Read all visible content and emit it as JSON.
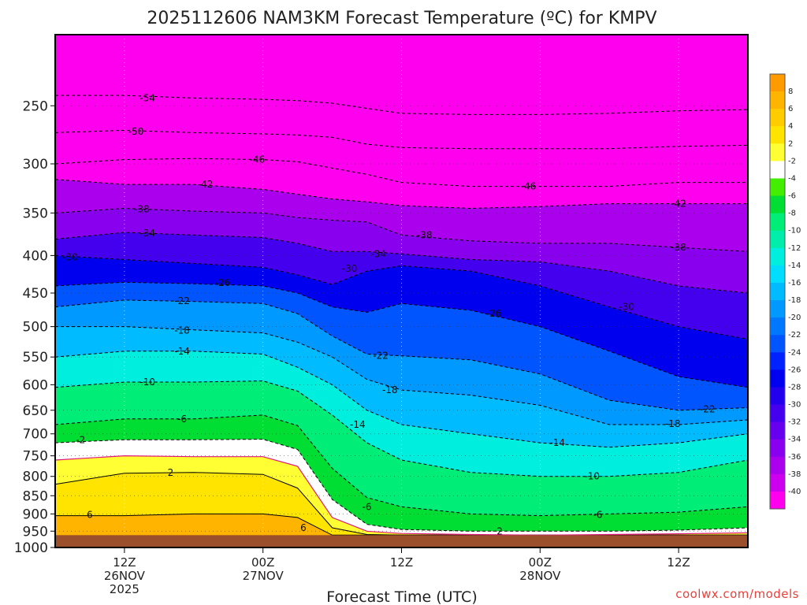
{
  "chart_data": {
    "type": "heatmap",
    "title": "2025112606 NAM3KM Forecast Temperature (ºC) for KMPV",
    "xlabel": "Forecast Time (UTC)",
    "ylabel": "",
    "y_scale": "log-pressure",
    "ylim": [
      1000,
      200
    ],
    "y_ticks": [
      250,
      300,
      350,
      400,
      450,
      500,
      550,
      600,
      650,
      700,
      750,
      800,
      850,
      900,
      950,
      1000
    ],
    "x_range_hours": [
      0,
      60
    ],
    "x_ticks": [
      {
        "hour": 6,
        "label": "12Z",
        "date": "26NOV",
        "year": "2025"
      },
      {
        "hour": 18,
        "label": "00Z",
        "date": "27NOV",
        "year": ""
      },
      {
        "hour": 30,
        "label": "12Z",
        "date": "",
        "year": ""
      },
      {
        "hour": 42,
        "label": "00Z",
        "date": "28NOV",
        "year": ""
      },
      {
        "hour": 54,
        "label": "12Z",
        "date": "",
        "year": ""
      }
    ],
    "ground_pressure": 962,
    "colorbar": {
      "ticks": [
        8,
        6,
        4,
        2,
        -2,
        -4,
        -6,
        -8,
        -10,
        -12,
        -14,
        -16,
        -18,
        -20,
        -22,
        -24,
        -26,
        -28,
        -30,
        -32,
        -34,
        -36,
        -38,
        -40
      ],
      "colors": [
        "#ff9a00",
        "#ffb400",
        "#ffcc00",
        "#ffe400",
        "#ffff33",
        "#ffffff",
        "#44ee00",
        "#00dd33",
        "#00ee77",
        "#00eeaa",
        "#00eedd",
        "#00ddff",
        "#00bbff",
        "#0099ff",
        "#0077ff",
        "#0055ff",
        "#0022ff",
        "#0000ee",
        "#2200ee",
        "#4400ee",
        "#6600ee",
        "#8800ee",
        "#aa00ee",
        "#cc00ee",
        "#ff00ee"
      ]
    },
    "columns_hours": [
      0,
      6,
      12,
      18,
      21,
      24,
      27,
      30,
      36,
      42,
      48,
      54,
      60
    ],
    "isotherm_profiles": [
      {
        "temp": 6,
        "p": [
          905,
          905,
          900,
          900,
          910,
          962,
          962,
          962,
          962,
          962,
          962,
          962,
          962
        ]
      },
      {
        "temp": 2,
        "p": [
          820,
          792,
          790,
          795,
          830,
          940,
          960,
          962,
          962,
          962,
          962,
          962,
          962
        ]
      },
      {
        "temp": 0,
        "p": [
          760,
          750,
          752,
          752,
          775,
          910,
          950,
          957,
          960,
          962,
          960,
          958,
          955
        ]
      },
      {
        "temp": -2,
        "p": [
          720,
          713,
          713,
          712,
          735,
          860,
          930,
          945,
          950,
          950,
          950,
          947,
          940
        ]
      },
      {
        "temp": -6,
        "p": [
          680,
          668,
          668,
          660,
          682,
          780,
          855,
          880,
          900,
          905,
          900,
          895,
          880
        ]
      },
      {
        "temp": -10,
        "p": [
          605,
          595,
          595,
          593,
          612,
          660,
          720,
          760,
          790,
          800,
          800,
          790,
          760
        ]
      },
      {
        "temp": -14,
        "p": [
          550,
          540,
          540,
          545,
          568,
          600,
          650,
          680,
          700,
          720,
          730,
          720,
          700
        ]
      },
      {
        "temp": -18,
        "p": [
          500,
          500,
          505,
          510,
          525,
          550,
          590,
          610,
          620,
          640,
          680,
          680,
          670
        ]
      },
      {
        "temp": -22,
        "p": [
          470,
          460,
          462,
          465,
          480,
          515,
          545,
          548,
          555,
          580,
          630,
          650,
          645
        ]
      },
      {
        "temp": -26,
        "p": [
          440,
          435,
          437,
          440,
          450,
          470,
          478,
          465,
          475,
          500,
          540,
          585,
          605
        ]
      },
      {
        "temp": -30,
        "p": [
          400,
          405,
          410,
          415,
          425,
          438,
          420,
          413,
          420,
          440,
          470,
          500,
          520
        ]
      },
      {
        "temp": -34,
        "p": [
          380,
          372,
          375,
          378,
          385,
          395,
          395,
          398,
          405,
          408,
          420,
          440,
          450
        ]
      },
      {
        "temp": -38,
        "p": [
          350,
          345,
          348,
          350,
          355,
          358,
          360,
          375,
          382,
          385,
          385,
          390,
          395
        ]
      },
      {
        "temp": -42,
        "p": [
          315,
          320,
          320,
          325,
          330,
          335,
          338,
          342,
          345,
          343,
          340,
          340,
          340
        ]
      },
      {
        "temp": -46,
        "p": [
          300,
          296,
          295,
          296,
          298,
          304,
          310,
          318,
          322,
          322,
          322,
          318,
          318
        ]
      },
      {
        "temp": -50,
        "p": [
          272,
          270,
          272,
          273,
          274,
          276,
          282,
          285,
          286,
          286,
          286,
          284,
          283
        ]
      },
      {
        "temp": -54,
        "p": [
          242,
          242,
          244,
          245,
          246,
          248,
          252,
          256,
          257,
          257,
          256,
          254,
          253
        ]
      }
    ],
    "annotations": [
      {
        "text": "-54",
        "hour": 8,
        "p": 244
      },
      {
        "text": "-50",
        "hour": 7,
        "p": 271
      },
      {
        "text": "-46",
        "hour": 17.5,
        "p": 296
      },
      {
        "text": "-46",
        "hour": 41,
        "p": 322
      },
      {
        "text": "-42",
        "hour": 13,
        "p": 320
      },
      {
        "text": "-42",
        "hour": 54,
        "p": 340
      },
      {
        "text": "-38",
        "hour": 7.5,
        "p": 346
      },
      {
        "text": "-38",
        "hour": 32,
        "p": 375
      },
      {
        "text": "-38",
        "hour": 54,
        "p": 390
      },
      {
        "text": "-34",
        "hour": 8,
        "p": 373
      },
      {
        "text": "-34",
        "hour": 28,
        "p": 398
      },
      {
        "text": "-30",
        "hour": 1.3,
        "p": 402
      },
      {
        "text": "-30",
        "hour": 25.5,
        "p": 417
      },
      {
        "text": "-30",
        "hour": 49.5,
        "p": 470
      },
      {
        "text": "-26",
        "hour": 14.5,
        "p": 436
      },
      {
        "text": "-26",
        "hour": 38,
        "p": 480
      },
      {
        "text": "-22",
        "hour": 11,
        "p": 461
      },
      {
        "text": "-22",
        "hour": 28.2,
        "p": 548
      },
      {
        "text": "-22",
        "hour": 56.5,
        "p": 648
      },
      {
        "text": "-18",
        "hour": 11,
        "p": 506
      },
      {
        "text": "-18",
        "hour": 29,
        "p": 610
      },
      {
        "text": "-18",
        "hour": 53.5,
        "p": 678
      },
      {
        "text": "-14",
        "hour": 11,
        "p": 540
      },
      {
        "text": "-14",
        "hour": 26.2,
        "p": 680
      },
      {
        "text": "-14",
        "hour": 43.5,
        "p": 720
      },
      {
        "text": "-10",
        "hour": 8,
        "p": 595
      },
      {
        "text": "-10",
        "hour": 46.5,
        "p": 800
      },
      {
        "text": "-6",
        "hour": 11,
        "p": 668
      },
      {
        "text": "-6",
        "hour": 27,
        "p": 880
      },
      {
        "text": "-6",
        "hour": 47,
        "p": 903
      },
      {
        "text": "-2",
        "hour": 2.2,
        "p": 714
      },
      {
        "text": "2",
        "hour": 10,
        "p": 791
      },
      {
        "text": "2",
        "hour": 38.5,
        "p": 950
      },
      {
        "text": "6",
        "hour": 3,
        "p": 903
      },
      {
        "text": "6",
        "hour": 21.5,
        "p": 940
      }
    ]
  },
  "credit": "coolwx.com/models"
}
